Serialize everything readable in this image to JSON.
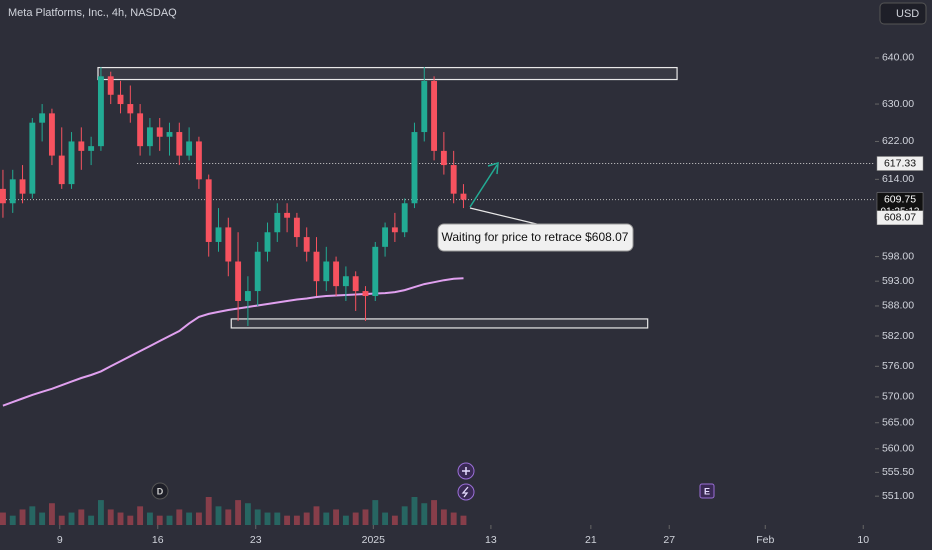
{
  "chart_data": {
    "type": "candlestick",
    "title": "Meta Platforms, Inc., 4h, NASDAQ",
    "currency": "USD",
    "log": true,
    "ylim": [
      545.6,
      652.8
    ],
    "yticks": [
      {
        "value": 640,
        "label": "640.00"
      },
      {
        "value": 630,
        "label": "630.00"
      },
      {
        "value": 622,
        "label": "622.00"
      },
      {
        "value": 614,
        "label": "614.00"
      },
      {
        "value": 598,
        "label": "598.00"
      },
      {
        "value": 593,
        "label": "593.00"
      },
      {
        "value": 588,
        "label": "588.00"
      },
      {
        "value": 582,
        "label": "582.00"
      },
      {
        "value": 576,
        "label": "576.00"
      },
      {
        "value": 570,
        "label": "570.00"
      },
      {
        "value": 565,
        "label": "565.00"
      },
      {
        "value": 560,
        "label": "560.00"
      },
      {
        "value": 555.5,
        "label": "555.50"
      },
      {
        "value": 551,
        "label": "551.00"
      }
    ],
    "xlim": [
      -0.3,
      89
    ],
    "xticks": [
      {
        "value": 5.8,
        "label": "9"
      },
      {
        "value": 15.8,
        "label": "16"
      },
      {
        "value": 25.8,
        "label": "23"
      },
      {
        "value": 37.8,
        "label": "2025"
      },
      {
        "value": 49.8,
        "label": "13"
      },
      {
        "value": 60,
        "label": "21"
      },
      {
        "value": 68,
        "label": "27"
      },
      {
        "value": 77.8,
        "label": "Feb"
      },
      {
        "value": 87.8,
        "label": "10"
      }
    ],
    "up_color": "#22ab94",
    "down_color": "#f7525f",
    "open": [
      612,
      609,
      614,
      611,
      626,
      628,
      619,
      613,
      622,
      620,
      621,
      636,
      632,
      630,
      628,
      621,
      625,
      623,
      624,
      619,
      622,
      614,
      601,
      604,
      597,
      589,
      591,
      599,
      603,
      607,
      606,
      602,
      599,
      593,
      597,
      592,
      594,
      591,
      590,
      600,
      604,
      603,
      609,
      624,
      635,
      620,
      617,
      611
    ],
    "high": [
      616,
      616,
      617,
      627,
      630,
      629,
      625,
      624,
      625,
      623,
      638,
      637,
      635,
      634,
      630,
      627,
      627,
      626,
      626,
      625,
      623,
      615,
      608,
      606,
      603,
      594,
      601,
      605,
      609,
      609,
      607,
      604,
      602,
      600,
      598,
      596,
      595,
      592,
      601,
      605,
      607,
      610,
      626,
      638,
      636,
      624,
      620,
      613
    ],
    "low": [
      606,
      607,
      609,
      610,
      622,
      617,
      612,
      612,
      616,
      617,
      620,
      630,
      628,
      626,
      619,
      619,
      620,
      619,
      617,
      618,
      612,
      598,
      599,
      594,
      585,
      584,
      588,
      597,
      601,
      603,
      600,
      597,
      590,
      591,
      590,
      589,
      587,
      585,
      589,
      598,
      601,
      602,
      608,
      622,
      618,
      615,
      609,
      608
    ],
    "close": [
      609,
      614,
      611,
      626,
      628,
      619,
      613,
      622,
      620,
      621,
      636,
      632,
      630,
      628,
      621,
      625,
      623,
      624,
      619,
      622,
      614,
      601,
      604,
      597,
      589,
      591,
      599,
      603,
      607,
      606,
      602,
      599,
      593,
      597,
      592,
      594,
      591,
      590,
      600,
      604,
      603,
      609,
      624,
      635,
      620,
      617,
      611,
      609.75
    ],
    "volume": [
      4,
      3,
      5,
      6,
      4,
      7,
      3,
      4,
      5,
      3,
      8,
      5,
      4,
      3,
      6,
      4,
      3,
      3,
      5,
      4,
      4,
      9,
      6,
      5,
      8,
      7,
      5,
      4,
      4,
      3,
      3,
      4,
      6,
      4,
      5,
      3,
      4,
      5,
      8,
      4,
      3,
      6,
      9,
      7,
      8,
      5,
      4,
      3
    ],
    "ma": {
      "color": "#e0a0ef",
      "values": [
        568.3,
        569.0,
        569.7,
        570.4,
        571.0,
        571.6,
        572.3,
        573.0,
        573.7,
        574.3,
        575.0,
        576.0,
        577.0,
        578.0,
        579.0,
        580.0,
        581.0,
        582.0,
        583.0,
        584.5,
        585.8,
        586.4,
        586.8,
        587.2,
        587.5,
        587.8,
        588.1,
        588.4,
        588.7,
        589.0,
        589.3,
        589.5,
        589.8,
        590.0,
        590.1,
        590.2,
        590.3,
        590.4,
        590.5,
        590.6,
        590.8,
        591.2,
        591.8,
        592.4,
        592.8,
        593.2,
        593.5,
        593.6
      ]
    },
    "zones": [
      {
        "top": 637.9,
        "bottom": 635.3,
        "start": 9.7,
        "end": 68.8
      },
      {
        "top": 585.4,
        "bottom": 583.6,
        "start": 23.3,
        "end": 65.8
      }
    ],
    "resistance": {
      "value": 617.33,
      "start": 13.7
    },
    "last_price": 609.75,
    "countdown": "01:35:13",
    "target": 608.07,
    "annotation": "Waiting for price to retrace $608.07",
    "events": [
      "D",
      "E"
    ]
  }
}
